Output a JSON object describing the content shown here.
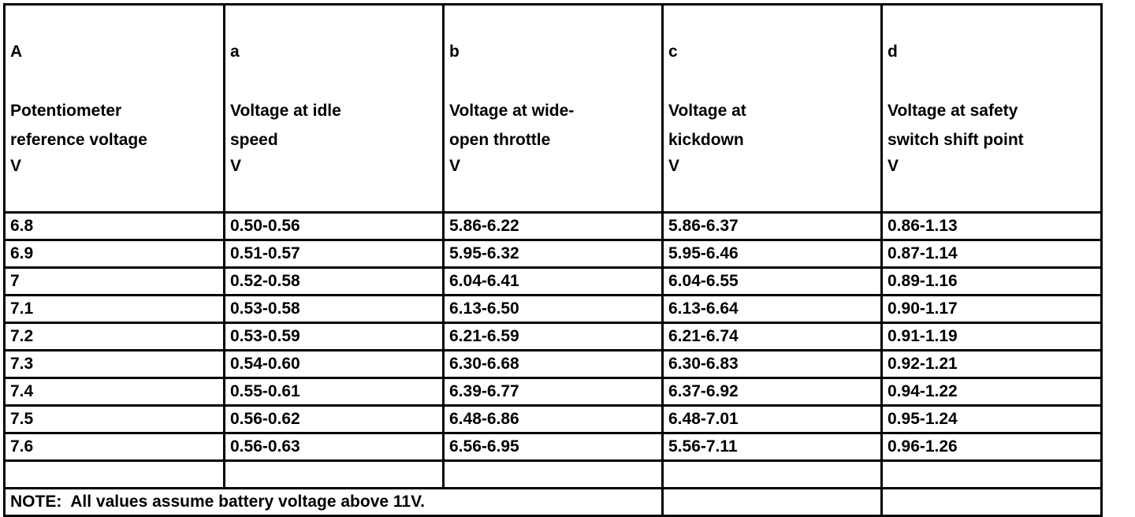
{
  "table": {
    "header": [
      {
        "letter": "A",
        "label": [
          "Potentiometer",
          "reference voltage"
        ],
        "unit": "V"
      },
      {
        "letter": "a",
        "label": [
          "Voltage at idle",
          "speed"
        ],
        "unit": "V"
      },
      {
        "letter": "b",
        "label": [
          "Voltage at wide-",
          "open throttle"
        ],
        "unit": "V"
      },
      {
        "letter": "c",
        "label": [
          "Voltage at",
          "kickdown"
        ],
        "unit": "V"
      },
      {
        "letter": "d",
        "label": [
          "Voltage at safety",
          "switch shift point"
        ],
        "unit": "V"
      }
    ],
    "rows": [
      [
        "6.8",
        "0.50-0.56",
        "5.86-6.22",
        "5.86-6.37",
        "0.86-1.13"
      ],
      [
        "6.9",
        "0.51-0.57",
        "5.95-6.32",
        "5.95-6.46",
        "0.87-1.14"
      ],
      [
        "7",
        "0.52-0.58",
        "6.04-6.41",
        "6.04-6.55",
        "0.89-1.16"
      ],
      [
        "7.1",
        "0.53-0.58",
        "6.13-6.50",
        "6.13-6.64",
        "0.90-1.17"
      ],
      [
        "7.2",
        "0.53-0.59",
        "6.21-6.59",
        "6.21-6.74",
        "0.91-1.19"
      ],
      [
        "7.3",
        "0.54-0.60",
        "6.30-6.68",
        "6.30-6.83",
        "0.92-1.21"
      ],
      [
        "7.4",
        "0.55-0.61",
        "6.39-6.77",
        "6.37-6.92",
        "0.94-1.22"
      ],
      [
        "7.5",
        "0.56-0.62",
        "6.48-6.86",
        "6.48-7.01",
        "0.95-1.24"
      ],
      [
        "7.6",
        "0.56-0.63",
        "6.56-6.95",
        "5.56-7.11",
        "0.96-1.26"
      ]
    ],
    "note": "NOTE:  All values assume battery voltage above 11V."
  }
}
